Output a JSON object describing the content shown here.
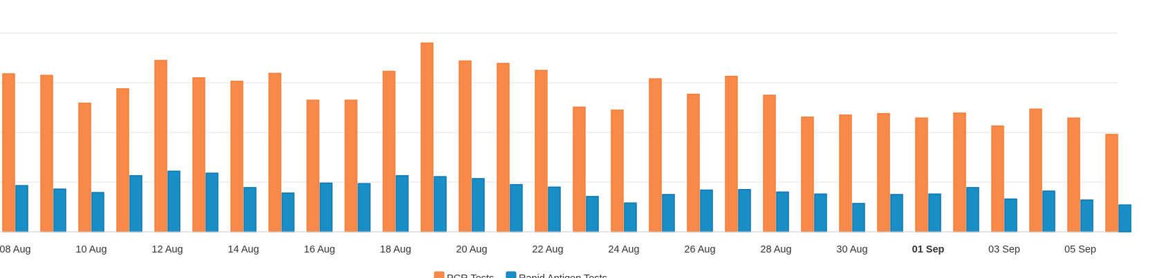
{
  "chart_data": {
    "type": "bar",
    "categories": [
      "08 Aug",
      "09 Aug",
      "10 Aug",
      "11 Aug",
      "12 Aug",
      "13 Aug",
      "14 Aug",
      "15 Aug",
      "16 Aug",
      "17 Aug",
      "18 Aug",
      "19 Aug",
      "20 Aug",
      "21 Aug",
      "22 Aug",
      "23 Aug",
      "24 Aug",
      "25 Aug",
      "26 Aug",
      "27 Aug",
      "28 Aug",
      "29 Aug",
      "30 Aug",
      "31 Aug",
      "01 Sep",
      "02 Sep",
      "03 Sep",
      "04 Sep",
      "05 Sep",
      "06 Sep"
    ],
    "tick_labels": [
      "08 Aug",
      "10 Aug",
      "12 Aug",
      "14 Aug",
      "16 Aug",
      "18 Aug",
      "20 Aug",
      "22 Aug",
      "24 Aug",
      "26 Aug",
      "28 Aug",
      "30 Aug",
      "01 Sep",
      "03 Sep",
      "05 Sep"
    ],
    "bold_tick": "01 Sep",
    "series": [
      {
        "name": "PCR Tests",
        "color": "#f7894a",
        "values": [
          3.18,
          3.15,
          2.59,
          2.88,
          3.45,
          3.1,
          3.03,
          3.19,
          2.65,
          2.65,
          3.23,
          3.8,
          3.44,
          3.39,
          3.25,
          2.51,
          2.45,
          3.08,
          2.77,
          3.13,
          2.75,
          2.31,
          2.35,
          2.38,
          2.29,
          2.39,
          2.13,
          2.47,
          2.29,
          1.96
        ]
      },
      {
        "name": "Rapid Antigen Tests",
        "color": "#1a8ec7",
        "values": [
          0.93,
          0.86,
          0.79,
          1.13,
          1.22,
          1.18,
          0.89,
          0.78,
          0.98,
          0.97,
          1.13,
          1.11,
          1.07,
          0.95,
          0.9,
          0.71,
          0.58,
          0.75,
          0.84,
          0.85,
          0.8,
          0.76,
          0.57,
          0.75,
          0.76,
          0.89,
          0.66,
          0.82,
          0.64,
          0.54
        ]
      }
    ],
    "ylim": [
      0,
      4
    ],
    "grid": true,
    "legend_position": "bottom-center"
  }
}
